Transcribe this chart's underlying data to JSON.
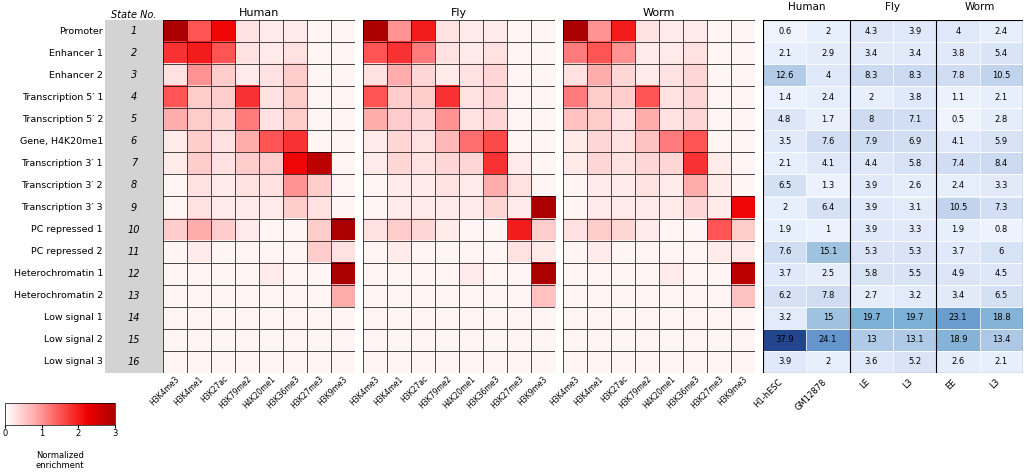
{
  "state_labels": [
    "Promoter",
    "Enhancer 1",
    "Enhancer 2",
    "Transcription 5′ 1",
    "Transcription 5′ 2",
    "Gene, H4K20me1",
    "Transcription 3′ 1",
    "Transcription 3′ 2",
    "Transcription 3′ 3",
    "PC repressed 1",
    "PC repressed 2",
    "Heterochromatin 1",
    "Heterochromatin 2",
    "Low signal 1",
    "Low signal 2",
    "Low signal 3"
  ],
  "state_numbers": [
    "1",
    "2",
    "3",
    "4",
    "5",
    "6",
    "7",
    "8",
    "9",
    "10",
    "11",
    "12",
    "13",
    "14",
    "15",
    "16"
  ],
  "histone_marks": [
    "H3K4me3",
    "H3K4me1",
    "H3K27ac",
    "H3K79me2",
    "H4K20me1",
    "H3K36me3",
    "H3K27me3",
    "H3K9me3"
  ],
  "human_heatmap": [
    [
      3.0,
      1.5,
      2.2,
      0.3,
      0.2,
      0.2,
      0.1,
      0.1
    ],
    [
      1.8,
      2.0,
      1.5,
      0.3,
      0.2,
      0.3,
      0.1,
      0.1
    ],
    [
      0.3,
      1.0,
      0.5,
      0.2,
      0.3,
      0.5,
      0.1,
      0.1
    ],
    [
      1.5,
      0.5,
      0.5,
      1.8,
      0.3,
      0.5,
      0.1,
      0.1
    ],
    [
      0.8,
      0.5,
      0.4,
      1.2,
      0.3,
      0.5,
      0.1,
      0.1
    ],
    [
      0.2,
      0.5,
      0.3,
      0.8,
      1.5,
      1.8,
      0.1,
      0.1
    ],
    [
      0.2,
      0.5,
      0.3,
      0.5,
      0.5,
      2.2,
      2.8,
      0.1
    ],
    [
      0.1,
      0.3,
      0.2,
      0.3,
      0.3,
      1.0,
      0.5,
      0.1
    ],
    [
      0.1,
      0.3,
      0.2,
      0.2,
      0.2,
      0.5,
      0.3,
      0.1
    ],
    [
      0.5,
      0.8,
      0.5,
      0.2,
      0.1,
      0.1,
      0.5,
      3.0
    ],
    [
      0.1,
      0.2,
      0.1,
      0.1,
      0.1,
      0.1,
      0.5,
      0.3
    ],
    [
      0.1,
      0.1,
      0.1,
      0.1,
      0.2,
      0.1,
      0.1,
      3.2
    ],
    [
      0.1,
      0.1,
      0.1,
      0.1,
      0.1,
      0.1,
      0.1,
      0.8
    ],
    [
      0.1,
      0.1,
      0.1,
      0.1,
      0.1,
      0.1,
      0.1,
      0.1
    ],
    [
      0.1,
      0.1,
      0.1,
      0.1,
      0.1,
      0.1,
      0.1,
      0.1
    ],
    [
      0.1,
      0.1,
      0.1,
      0.1,
      0.1,
      0.1,
      0.1,
      0.1
    ]
  ],
  "fly_heatmap": [
    [
      3.0,
      1.0,
      2.0,
      0.3,
      0.2,
      0.2,
      0.1,
      0.1
    ],
    [
      1.5,
      1.8,
      1.2,
      0.3,
      0.2,
      0.3,
      0.1,
      0.1
    ],
    [
      0.3,
      0.8,
      0.4,
      0.2,
      0.3,
      0.4,
      0.1,
      0.1
    ],
    [
      1.5,
      0.5,
      0.5,
      1.8,
      0.3,
      0.4,
      0.1,
      0.1
    ],
    [
      0.8,
      0.5,
      0.4,
      1.0,
      0.3,
      0.4,
      0.1,
      0.1
    ],
    [
      0.2,
      0.4,
      0.3,
      0.7,
      1.3,
      1.6,
      0.1,
      0.1
    ],
    [
      0.2,
      0.4,
      0.3,
      0.4,
      0.4,
      1.8,
      0.2,
      0.1
    ],
    [
      0.1,
      0.2,
      0.2,
      0.3,
      0.2,
      0.8,
      0.3,
      0.1
    ],
    [
      0.1,
      0.2,
      0.2,
      0.2,
      0.2,
      0.4,
      0.2,
      3.2
    ],
    [
      0.3,
      0.5,
      0.4,
      0.2,
      0.1,
      0.1,
      2.0,
      0.5
    ],
    [
      0.1,
      0.2,
      0.1,
      0.1,
      0.1,
      0.1,
      0.3,
      0.2
    ],
    [
      0.1,
      0.1,
      0.1,
      0.1,
      0.2,
      0.1,
      0.1,
      3.0
    ],
    [
      0.1,
      0.1,
      0.1,
      0.1,
      0.1,
      0.1,
      0.1,
      0.6
    ],
    [
      0.1,
      0.1,
      0.1,
      0.1,
      0.1,
      0.1,
      0.1,
      0.1
    ],
    [
      0.1,
      0.1,
      0.1,
      0.1,
      0.1,
      0.1,
      0.1,
      0.1
    ],
    [
      0.1,
      0.1,
      0.1,
      0.1,
      0.1,
      0.1,
      0.1,
      0.1
    ]
  ],
  "worm_heatmap": [
    [
      3.0,
      1.0,
      2.0,
      0.3,
      0.2,
      0.2,
      0.1,
      0.1
    ],
    [
      1.2,
      1.5,
      1.0,
      0.2,
      0.2,
      0.3,
      0.1,
      0.1
    ],
    [
      0.3,
      0.8,
      0.4,
      0.2,
      0.3,
      0.4,
      0.1,
      0.1
    ],
    [
      1.2,
      0.5,
      0.5,
      1.5,
      0.3,
      0.4,
      0.1,
      0.1
    ],
    [
      0.6,
      0.5,
      0.3,
      0.8,
      0.3,
      0.4,
      0.1,
      0.1
    ],
    [
      0.2,
      0.4,
      0.3,
      0.6,
      1.2,
      1.5,
      0.1,
      0.1
    ],
    [
      0.2,
      0.4,
      0.3,
      0.4,
      0.4,
      1.8,
      0.2,
      0.1
    ],
    [
      0.1,
      0.2,
      0.2,
      0.3,
      0.2,
      0.8,
      0.2,
      0.1
    ],
    [
      0.1,
      0.2,
      0.2,
      0.2,
      0.2,
      0.4,
      0.2,
      2.2
    ],
    [
      0.3,
      0.5,
      0.4,
      0.2,
      0.1,
      0.1,
      1.5,
      0.5
    ],
    [
      0.1,
      0.2,
      0.1,
      0.1,
      0.1,
      0.1,
      0.2,
      0.2
    ],
    [
      0.1,
      0.1,
      0.1,
      0.1,
      0.2,
      0.1,
      0.1,
      2.8
    ],
    [
      0.1,
      0.1,
      0.1,
      0.1,
      0.1,
      0.1,
      0.1,
      0.6
    ],
    [
      0.1,
      0.1,
      0.1,
      0.1,
      0.1,
      0.1,
      0.1,
      0.1
    ],
    [
      0.1,
      0.1,
      0.1,
      0.1,
      0.1,
      0.1,
      0.1,
      0.1
    ],
    [
      0.1,
      0.1,
      0.1,
      0.1,
      0.1,
      0.1,
      0.1,
      0.1
    ]
  ],
  "gc_values": [
    [
      0.6,
      2.0,
      4.3,
      3.9,
      4.0,
      2.4
    ],
    [
      2.1,
      2.9,
      3.4,
      3.4,
      3.8,
      5.4
    ],
    [
      12.6,
      4.0,
      8.3,
      8.3,
      7.8,
      10.5
    ],
    [
      1.4,
      2.4,
      2.0,
      3.8,
      1.1,
      2.1
    ],
    [
      4.8,
      1.7,
      8.0,
      7.1,
      0.5,
      2.8
    ],
    [
      3.5,
      7.6,
      7.9,
      6.9,
      4.1,
      5.9
    ],
    [
      2.1,
      4.1,
      4.4,
      5.8,
      7.4,
      8.4
    ],
    [
      6.5,
      1.3,
      3.9,
      2.6,
      2.4,
      3.3
    ],
    [
      2.0,
      6.4,
      3.9,
      3.1,
      10.5,
      7.3
    ],
    [
      1.9,
      1.0,
      3.9,
      3.3,
      1.9,
      0.8
    ],
    [
      7.6,
      15.1,
      5.3,
      5.3,
      3.7,
      6.0
    ],
    [
      3.7,
      2.5,
      5.8,
      5.5,
      4.9,
      4.5
    ],
    [
      6.2,
      7.8,
      2.7,
      3.2,
      3.4,
      6.5
    ],
    [
      3.2,
      15.0,
      19.7,
      19.7,
      23.1,
      18.8
    ],
    [
      37.9,
      24.1,
      13.0,
      13.1,
      18.9,
      13.4
    ],
    [
      3.9,
      2.0,
      3.6,
      5.2,
      2.6,
      2.1
    ]
  ],
  "gc_col_labels": [
    "H1-hESC",
    "GM12878",
    "LE",
    "L3",
    "EE",
    "L3"
  ],
  "gc_group_labels": [
    "Human",
    "Fly",
    "Worm"
  ],
  "gc_group_col_ranges": [
    [
      0,
      1
    ],
    [
      2,
      3
    ],
    [
      4,
      5
    ]
  ],
  "state_number_bg": "#d3d3d3",
  "vmax_red": 3.0,
  "gc_vmax": 40.0
}
